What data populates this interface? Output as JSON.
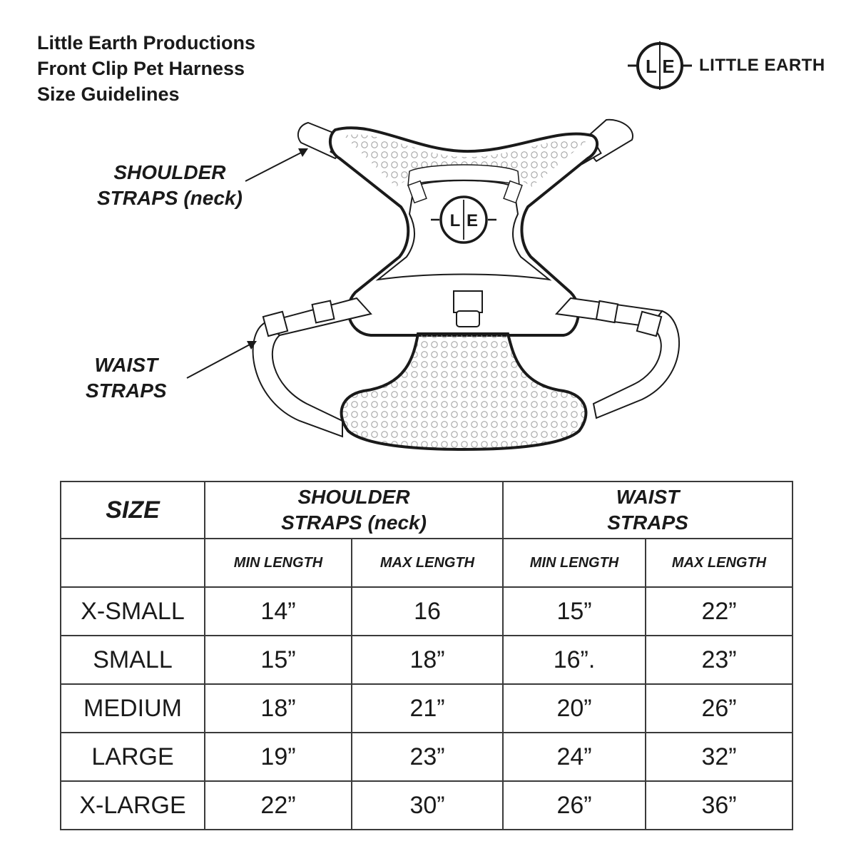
{
  "header": {
    "title_lines": [
      "Little Earth Productions",
      "Front Clip Pet Harness",
      "Size Guidelines"
    ],
    "brand_mark_left": "L",
    "brand_mark_right": "E",
    "brand_name": "LITTLE EARTH"
  },
  "callouts": {
    "shoulder": [
      "SHOULDER",
      "STRAPS (neck)"
    ],
    "waist": [
      "WAIST",
      "STRAPS"
    ]
  },
  "harness_logo": {
    "left": "L",
    "right": "E"
  },
  "table": {
    "size_header": "SIZE",
    "shoulder_header": [
      "SHOULDER",
      "STRAPS (neck)"
    ],
    "waist_header": [
      "WAIST",
      "STRAPS"
    ],
    "subheaders": [
      "MIN LENGTH",
      "MAX LENGTH",
      "MIN LENGTH",
      "MAX LENGTH"
    ],
    "rows": [
      {
        "size": "X-SMALL",
        "shoulder_min": "14”",
        "shoulder_max": "16",
        "waist_min": "15”",
        "waist_max": "22”"
      },
      {
        "size": "SMALL",
        "shoulder_min": "15”",
        "shoulder_max": "18”",
        "waist_min": "16”.",
        "waist_max": "23”"
      },
      {
        "size": "MEDIUM",
        "shoulder_min": "18”",
        "shoulder_max": "21”",
        "waist_min": "20”",
        "waist_max": "26”"
      },
      {
        "size": "LARGE",
        "shoulder_min": "19”",
        "shoulder_max": "23”",
        "waist_min": "24”",
        "waist_max": "32”"
      },
      {
        "size": "X-LARGE",
        "shoulder_min": "22”",
        "shoulder_max": "30”",
        "waist_min": "26”",
        "waist_max": "36”"
      }
    ]
  }
}
